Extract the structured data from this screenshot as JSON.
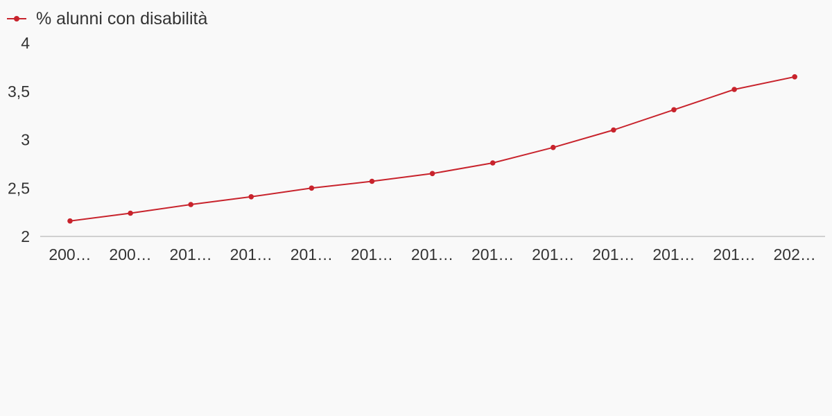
{
  "chart_data": {
    "type": "line",
    "title": "",
    "xlabel": "",
    "ylabel": "",
    "legend_position": "top-left",
    "grid": false,
    "ylim": [
      2,
      4
    ],
    "y_ticks": [
      "4",
      "3,5",
      "3",
      "2,5",
      "2"
    ],
    "categories": [
      "200…",
      "200…",
      "201…",
      "201…",
      "201…",
      "201…",
      "201…",
      "201…",
      "201…",
      "201…",
      "201…",
      "201…",
      "202…"
    ],
    "series": [
      {
        "name": "% alunni con disabilità",
        "color": "#c8232c",
        "values": [
          2.16,
          2.24,
          2.33,
          2.41,
          2.5,
          2.57,
          2.65,
          2.76,
          2.92,
          3.1,
          3.31,
          3.52,
          3.65
        ]
      }
    ]
  }
}
